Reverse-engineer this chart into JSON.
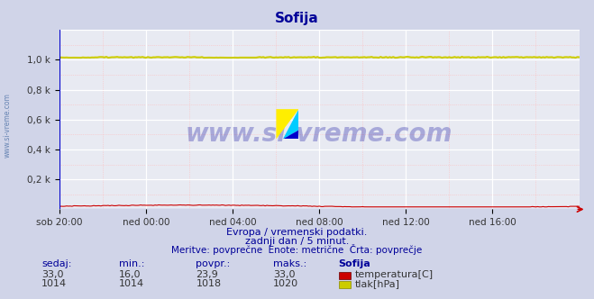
{
  "title": "Sofija",
  "title_color": "#000099",
  "title_fontsize": 11,
  "bg_color": "#d0d4e8",
  "plot_bg_color": "#e8eaf2",
  "grid_color_major": "#ffffff",
  "grid_color_minor": "#f0aaaa",
  "x_labels": [
    "sob 20:00",
    "ned 00:00",
    "ned 04:00",
    "ned 08:00",
    "ned 12:00",
    "ned 16:00"
  ],
  "x_ticks": [
    0,
    48,
    96,
    144,
    192,
    240
  ],
  "x_max": 288,
  "ylim": [
    0,
    1200
  ],
  "yticks": [
    200,
    400,
    600,
    800,
    1000
  ],
  "ytick_labels": [
    "0,2 k",
    "0,4 k",
    "0,6 k",
    "0,8 k",
    "1,0 k"
  ],
  "temp_color": "#cc0000",
  "pressure_color": "#cccc00",
  "temp_min": 16.0,
  "temp_max": 33.0,
  "temp_avg": 23.9,
  "pressure_min": 1014,
  "pressure_max": 1020,
  "pressure_avg": 1018,
  "subtitle1": "Evropa / vremenski podatki.",
  "subtitle2": "zadnji dan / 5 minut.",
  "subtitle3": "Meritve: povprečne  Enote: metrične  Črta: povprečje",
  "subtitle_color": "#000099",
  "table_header": [
    "sedaj:",
    "min.:",
    "povpr.:",
    "maks.:",
    "Sofija"
  ],
  "table_row1": [
    "33,0",
    "16,0",
    "23,9",
    "33,0"
  ],
  "table_row2": [
    "1014",
    "1014",
    "1018",
    "1020"
  ],
  "label_color": "#000099",
  "watermark": "www.si-vreme.com",
  "left_label": "www.si-vreme.com",
  "arrow_color": "#cc0000"
}
